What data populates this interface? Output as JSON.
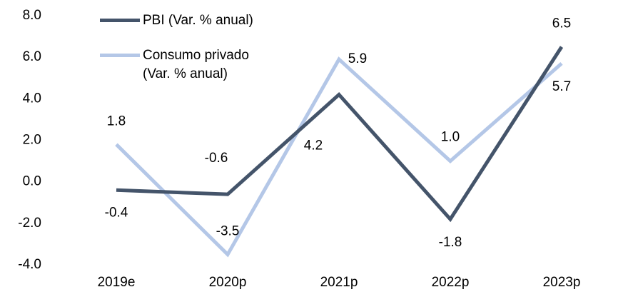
{
  "chart_data": {
    "type": "line",
    "categories": [
      "2019e",
      "2020p",
      "2021p",
      "2022p",
      "2023p"
    ],
    "series": [
      {
        "name": "PBI (Var. % anual)",
        "color": "#44546a",
        "values": [
          -0.4,
          -0.6,
          4.2,
          -1.8,
          6.5
        ]
      },
      {
        "name": "Consumo privado (Var. % anual)",
        "color": "#b4c7e7",
        "values": [
          1.8,
          -3.5,
          5.9,
          1,
          5.7
        ],
        "value_labels": [
          "1.8",
          "-3.5",
          "5.9",
          "1.0",
          "5.7"
        ]
      }
    ],
    "ylim": [
      -4,
      8
    ],
    "yticks": [
      {
        "value": -4,
        "label": "-4.0"
      },
      {
        "value": -2,
        "label": "-2.0"
      },
      {
        "value": 0,
        "label": "0.0"
      },
      {
        "value": 2,
        "label": "2.0"
      },
      {
        "value": 4,
        "label": "4.0"
      },
      {
        "value": 6,
        "label": "6.0"
      },
      {
        "value": 8,
        "label": "8.0"
      }
    ],
    "legend": "upper left"
  }
}
